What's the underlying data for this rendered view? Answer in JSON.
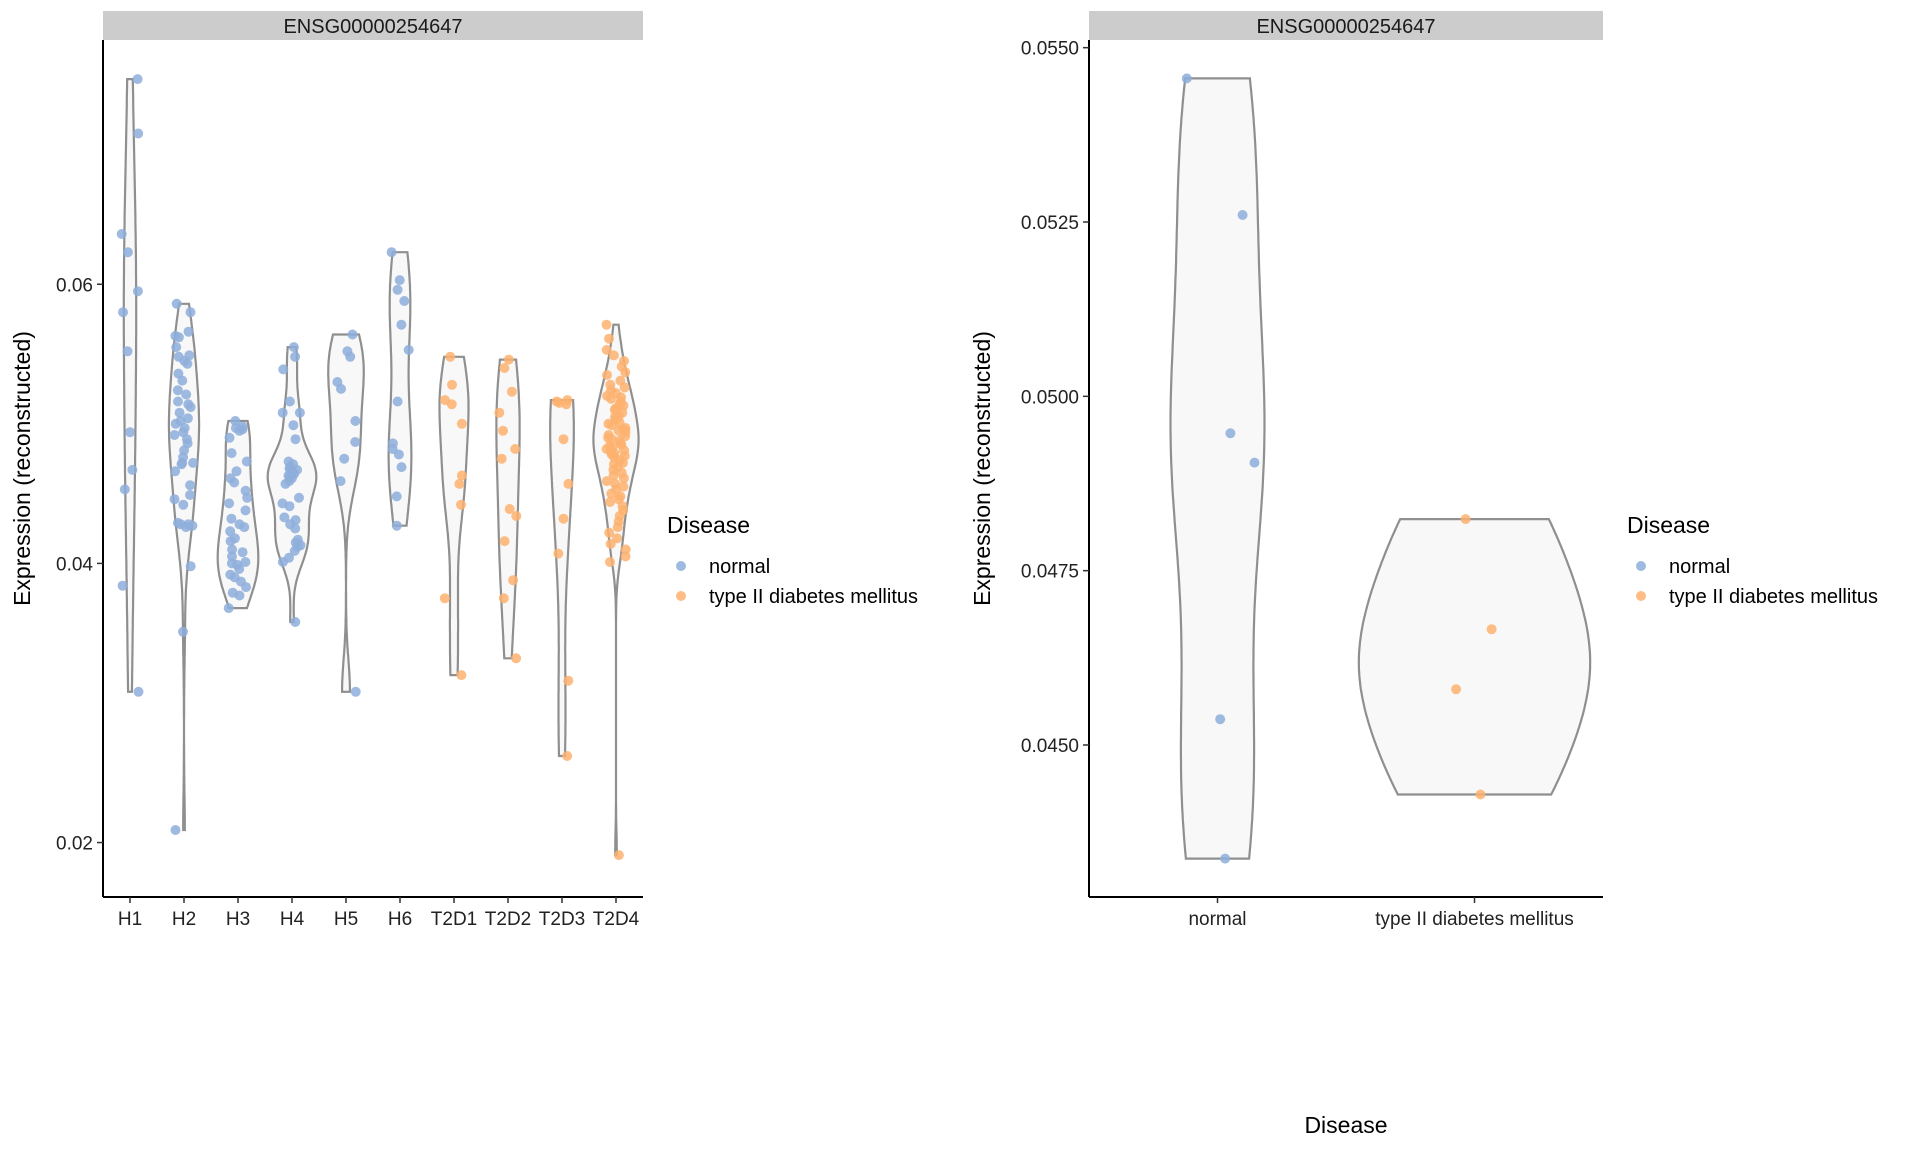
{
  "colors": {
    "normal": "#8EAEDB",
    "type II diabetes mellitus": "#FDB26E",
    "violin_fill": "#F8F8F8",
    "violin_stroke": "#8F8F8F",
    "strip": "#CCCCCC"
  },
  "legend": {
    "title": "Disease",
    "items": [
      "normal",
      "type II diabetes mellitus"
    ]
  },
  "chart_data": [
    {
      "type": "violin+jitter",
      "strip_title": "ENSG00000254647",
      "xlabel": "",
      "ylabel": "Expression (reconstructed)",
      "ylim": [
        0.0161,
        0.0775
      ],
      "yticks": [
        0.02,
        0.04,
        0.06
      ],
      "ytick_labels": [
        "0.02",
        "0.04",
        "0.06"
      ],
      "grid": false,
      "legend_position": "right",
      "categories": [
        "H1",
        "H2",
        "H3",
        "H4",
        "H5",
        "H6",
        "T2D1",
        "T2D2",
        "T2D3",
        "T2D4"
      ],
      "groups": [
        {
          "name": "H1",
          "disease": "normal",
          "values": [
            0.0747,
            0.0708,
            0.0636,
            0.0623,
            0.0595,
            0.058,
            0.0552,
            0.0494,
            0.0467,
            0.0453,
            0.0384,
            0.0308
          ]
        },
        {
          "name": "H2",
          "disease": "normal",
          "values": [
            0.0586,
            0.058,
            0.0566,
            0.0563,
            0.0562,
            0.0555,
            0.0549,
            0.0548,
            0.0545,
            0.0543,
            0.0536,
            0.0531,
            0.0524,
            0.0521,
            0.0516,
            0.0514,
            0.0512,
            0.0508,
            0.0504,
            0.0502,
            0.05,
            0.0497,
            0.0494,
            0.0492,
            0.0489,
            0.0486,
            0.0481,
            0.0476,
            0.0472,
            0.0472,
            0.0471,
            0.0466,
            0.0456,
            0.0449,
            0.0446,
            0.0442,
            0.0429,
            0.0428,
            0.0428,
            0.0427,
            0.0426,
            0.0398,
            0.0351,
            0.0209
          ]
        },
        {
          "name": "H3",
          "disease": "normal",
          "values": [
            0.0502,
            0.0498,
            0.0497,
            0.0496,
            0.0495,
            0.049,
            0.0479,
            0.0473,
            0.0466,
            0.0461,
            0.0458,
            0.0452,
            0.0447,
            0.0443,
            0.0438,
            0.0432,
            0.0428,
            0.0426,
            0.0423,
            0.0418,
            0.0416,
            0.041,
            0.0408,
            0.0405,
            0.0401,
            0.04,
            0.0399,
            0.0396,
            0.0392,
            0.039,
            0.0387,
            0.0383,
            0.0379,
            0.0377,
            0.0368
          ]
        },
        {
          "name": "H4",
          "disease": "normal",
          "values": [
            0.0555,
            0.0548,
            0.0539,
            0.0516,
            0.0508,
            0.0508,
            0.0499,
            0.0489,
            0.0473,
            0.0471,
            0.0469,
            0.0468,
            0.0467,
            0.0466,
            0.0465,
            0.0464,
            0.0463,
            0.0462,
            0.0461,
            0.0459,
            0.0457,
            0.0447,
            0.0443,
            0.0441,
            0.0433,
            0.0431,
            0.0428,
            0.0425,
            0.0417,
            0.0415,
            0.0413,
            0.0412,
            0.0409,
            0.0404,
            0.0401,
            0.0358
          ]
        },
        {
          "name": "H5",
          "disease": "normal",
          "values": [
            0.0564,
            0.0552,
            0.0548,
            0.053,
            0.0525,
            0.0502,
            0.0487,
            0.0475,
            0.0459,
            0.0308
          ]
        },
        {
          "name": "H6",
          "disease": "normal",
          "values": [
            0.0623,
            0.0603,
            0.0596,
            0.0588,
            0.0571,
            0.0553,
            0.0516,
            0.0486,
            0.0482,
            0.0478,
            0.0469,
            0.0448,
            0.0427
          ]
        },
        {
          "name": "T2D1",
          "disease": "type II diabetes mellitus",
          "values": [
            0.0548,
            0.0528,
            0.0517,
            0.0514,
            0.05,
            0.0463,
            0.0457,
            0.0442,
            0.0375,
            0.032
          ]
        },
        {
          "name": "T2D2",
          "disease": "type II diabetes mellitus",
          "values": [
            0.0546,
            0.054,
            0.0523,
            0.0508,
            0.0495,
            0.0482,
            0.0475,
            0.0439,
            0.0434,
            0.0416,
            0.0388,
            0.0375,
            0.0332
          ]
        },
        {
          "name": "T2D3",
          "disease": "type II diabetes mellitus",
          "values": [
            0.0517,
            0.0516,
            0.0515,
            0.0514,
            0.0489,
            0.0457,
            0.0432,
            0.0407,
            0.0316,
            0.0262
          ]
        },
        {
          "name": "T2D4",
          "disease": "type II diabetes mellitus",
          "values": [
            0.0571,
            0.0561,
            0.0553,
            0.0549,
            0.0545,
            0.0541,
            0.0537,
            0.0535,
            0.0531,
            0.0528,
            0.0526,
            0.0524,
            0.0522,
            0.052,
            0.0519,
            0.0518,
            0.0516,
            0.0514,
            0.0513,
            0.0511,
            0.051,
            0.0508,
            0.0506,
            0.0505,
            0.0503,
            0.0501,
            0.05,
            0.0499,
            0.0497,
            0.0496,
            0.0495,
            0.0494,
            0.0492,
            0.0491,
            0.049,
            0.0489,
            0.0488,
            0.0486,
            0.0485,
            0.0484,
            0.0483,
            0.0482,
            0.0481,
            0.048,
            0.0479,
            0.0478,
            0.0477,
            0.0476,
            0.0474,
            0.0472,
            0.0471,
            0.0469,
            0.0467,
            0.0465,
            0.0463,
            0.0461,
            0.0459,
            0.0457,
            0.0455,
            0.0453,
            0.045,
            0.0448,
            0.0446,
            0.0444,
            0.0441,
            0.0438,
            0.0434,
            0.043,
            0.0426,
            0.0422,
            0.0418,
            0.0414,
            0.041,
            0.0405,
            0.0401,
            0.0191
          ]
        }
      ]
    },
    {
      "type": "violin+jitter",
      "strip_title": "ENSG00000254647",
      "xlabel": "Disease",
      "ylabel": "Expression (reconstructed)",
      "ylim": [
        0.04282,
        0.05511
      ],
      "yticks": [
        0.045,
        0.0475,
        0.05,
        0.0525,
        0.055
      ],
      "ytick_labels": [
        "0.0450",
        "0.0475",
        "0.0500",
        "0.0525",
        "0.0550"
      ],
      "grid": false,
      "legend_position": "right",
      "categories": [
        "normal",
        "type II diabetes mellitus"
      ],
      "groups": [
        {
          "name": "normal",
          "disease": "normal",
          "values": [
            0.05456,
            0.0526,
            0.04947,
            0.04905,
            0.04537,
            0.04337
          ]
        },
        {
          "name": "type II diabetes mellitus",
          "disease": "type II diabetes mellitus",
          "values": [
            0.04824,
            0.04666,
            0.0458,
            0.04429
          ]
        }
      ]
    }
  ]
}
